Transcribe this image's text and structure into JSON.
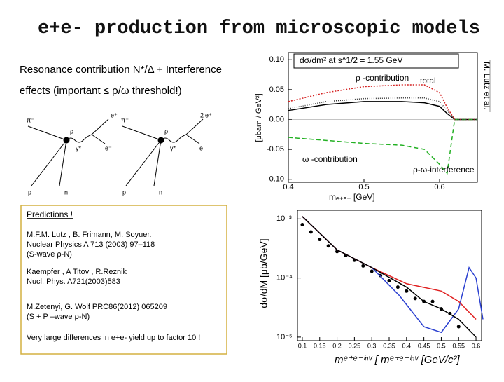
{
  "header": {
    "title": "e+e- production from microscopic models"
  },
  "intro": [
    "Resonance contribution N*/Δ + Interference",
    "effects (important ≤ ρ/ω threshold!)"
  ],
  "citation": "M. Lutz et al.",
  "diagrams": {
    "left": [
      "π⁻",
      "ρ",
      "γ*",
      "e⁺",
      "e⁻",
      "p",
      "n"
    ],
    "right": [
      "π⁻",
      "ρ",
      "γ*",
      "e⁺",
      "e",
      "p",
      "n"
    ],
    "index": "2"
  },
  "predictions": {
    "heading": "Predictions !",
    "refs": [
      [
        "M.F.M. Lutz , B. Frimann, M. Soyuer.",
        "Nuclear Physics A 713 (2003) 97–118",
        "(S-wave ρ-N)"
      ],
      [
        "Kaempfer , A Titov , R.Reznik",
        "Nucl. Phys. A721(2003)583"
      ],
      [
        "M.Zetenyi, G. Wolf PRC86(2012) 065209",
        "(S + P –wave ρ-N)"
      ],
      [
        "Very large differences in e+e- yield up to factor 10 !"
      ]
    ]
  },
  "chart_data": [
    {
      "type": "line",
      "title": "dσ/dm² at s^1/2 = 1.55 GeV",
      "ylabel": "[μbarn / GeV²]",
      "xlabel": "mₑ₊ₑ₋ [GeV]",
      "x": [
        0.4,
        0.45,
        0.5,
        0.55,
        0.58,
        0.6,
        0.61,
        0.62,
        0.65
      ],
      "series": [
        {
          "name": "total",
          "color": "#000000",
          "dash": "none",
          "values": [
            0.015,
            0.025,
            0.03,
            0.03,
            0.028,
            0.022,
            0.01,
            0,
            0
          ]
        },
        {
          "name": "ρ -contribution",
          "color": "#d42020",
          "dash": "2 2",
          "values": [
            0.03,
            0.045,
            0.055,
            0.058,
            0.058,
            0.045,
            0.02,
            0,
            0
          ]
        },
        {
          "name": "ω -contribution",
          "color": "#22b022",
          "dash": "6 4",
          "values": [
            -0.03,
            -0.035,
            -0.04,
            -0.043,
            -0.05,
            -0.075,
            -0.09,
            0,
            0
          ]
        },
        {
          "name": "ρ-ω-interference",
          "color": "#333333",
          "dash": "1 2",
          "values": [
            0.018,
            0.03,
            0.035,
            0.036,
            0.036,
            0.03,
            0.015,
            0,
            0
          ]
        }
      ],
      "xlim": [
        0.4,
        0.65
      ],
      "ylim": [
        -0.105,
        0.112
      ],
      "xticks": [
        0.4,
        0.5,
        0.6
      ],
      "yticks": [
        {
          "value": 0.1,
          "label": "0.10"
        },
        {
          "value": 0.05,
          "label": "0.05"
        },
        {
          "value": 0,
          "label": "0.00"
        },
        {
          "value": -0.05,
          "label": "-0.05"
        },
        {
          "value": -0.1,
          "label": "-0.10"
        }
      ]
    },
    {
      "type": "line",
      "ylabel": "dσ/dM [μb/GeV]",
      "xlabel": "mᵉ⁺ᵉ⁻ⁱⁿᵛ  [ mᵉ⁺ᵉ⁻ⁱⁿᵛ [GeV/c²]",
      "log_y": true,
      "series": [
        {
          "style": "markers",
          "color": "#000000",
          "x": [
            0.1,
            0.125,
            0.15,
            0.175,
            0.2,
            0.225,
            0.25,
            0.275,
            0.3,
            0.325,
            0.35,
            0.375,
            0.4,
            0.425,
            0.45,
            0.475,
            0.5,
            0.525,
            0.55
          ],
          "values": [
            0.0008,
            0.0006,
            0.00045,
            0.00035,
            0.00028,
            0.00024,
            0.0002,
            0.00016,
            0.00013,
            0.00011,
            9e-05,
            7e-05,
            6e-05,
            4.5e-05,
            4e-05,
            4e-05,
            3e-05,
            2.5e-05,
            1.5e-05
          ]
        },
        {
          "style": "line",
          "color": "#2a3fd0",
          "x": [
            0.1,
            0.2,
            0.3,
            0.38,
            0.45,
            0.5,
            0.55,
            0.58,
            0.6,
            0.62
          ],
          "values": [
            0.0011,
            0.0003,
            0.00015,
            5e-05,
            1.5e-05,
            1.2e-05,
            3e-05,
            0.00015,
            0.0001,
            2e-05
          ]
        },
        {
          "style": "line",
          "color": "#e02020",
          "x": [
            0.1,
            0.2,
            0.3,
            0.4,
            0.5,
            0.55,
            0.6
          ],
          "values": [
            0.0011,
            0.0003,
            0.00015,
            8e-05,
            6e-05,
            4e-05,
            2e-05
          ]
        },
        {
          "style": "line",
          "color": "#000000",
          "x": [
            0.1,
            0.2,
            0.3,
            0.4,
            0.45,
            0.5,
            0.55,
            0.6
          ],
          "values": [
            0.0011,
            0.0003,
            0.00015,
            7e-05,
            4e-05,
            3e-05,
            2e-05,
            1e-05
          ]
        }
      ],
      "xlim": [
        0.086,
        0.616
      ],
      "ylim": [
        8.7e-06,
        0.0014
      ],
      "xticks": [
        0.1,
        0.15,
        0.2,
        0.25,
        0.3,
        0.35,
        0.4,
        0.45,
        0.5,
        0.55,
        0.6
      ],
      "yticks": [
        {
          "value": 0.001,
          "label": "10⁻³"
        },
        {
          "value": 0.0001,
          "label": "10⁻⁴"
        },
        {
          "value": 1e-05,
          "label": "10⁻⁵"
        }
      ]
    }
  ]
}
